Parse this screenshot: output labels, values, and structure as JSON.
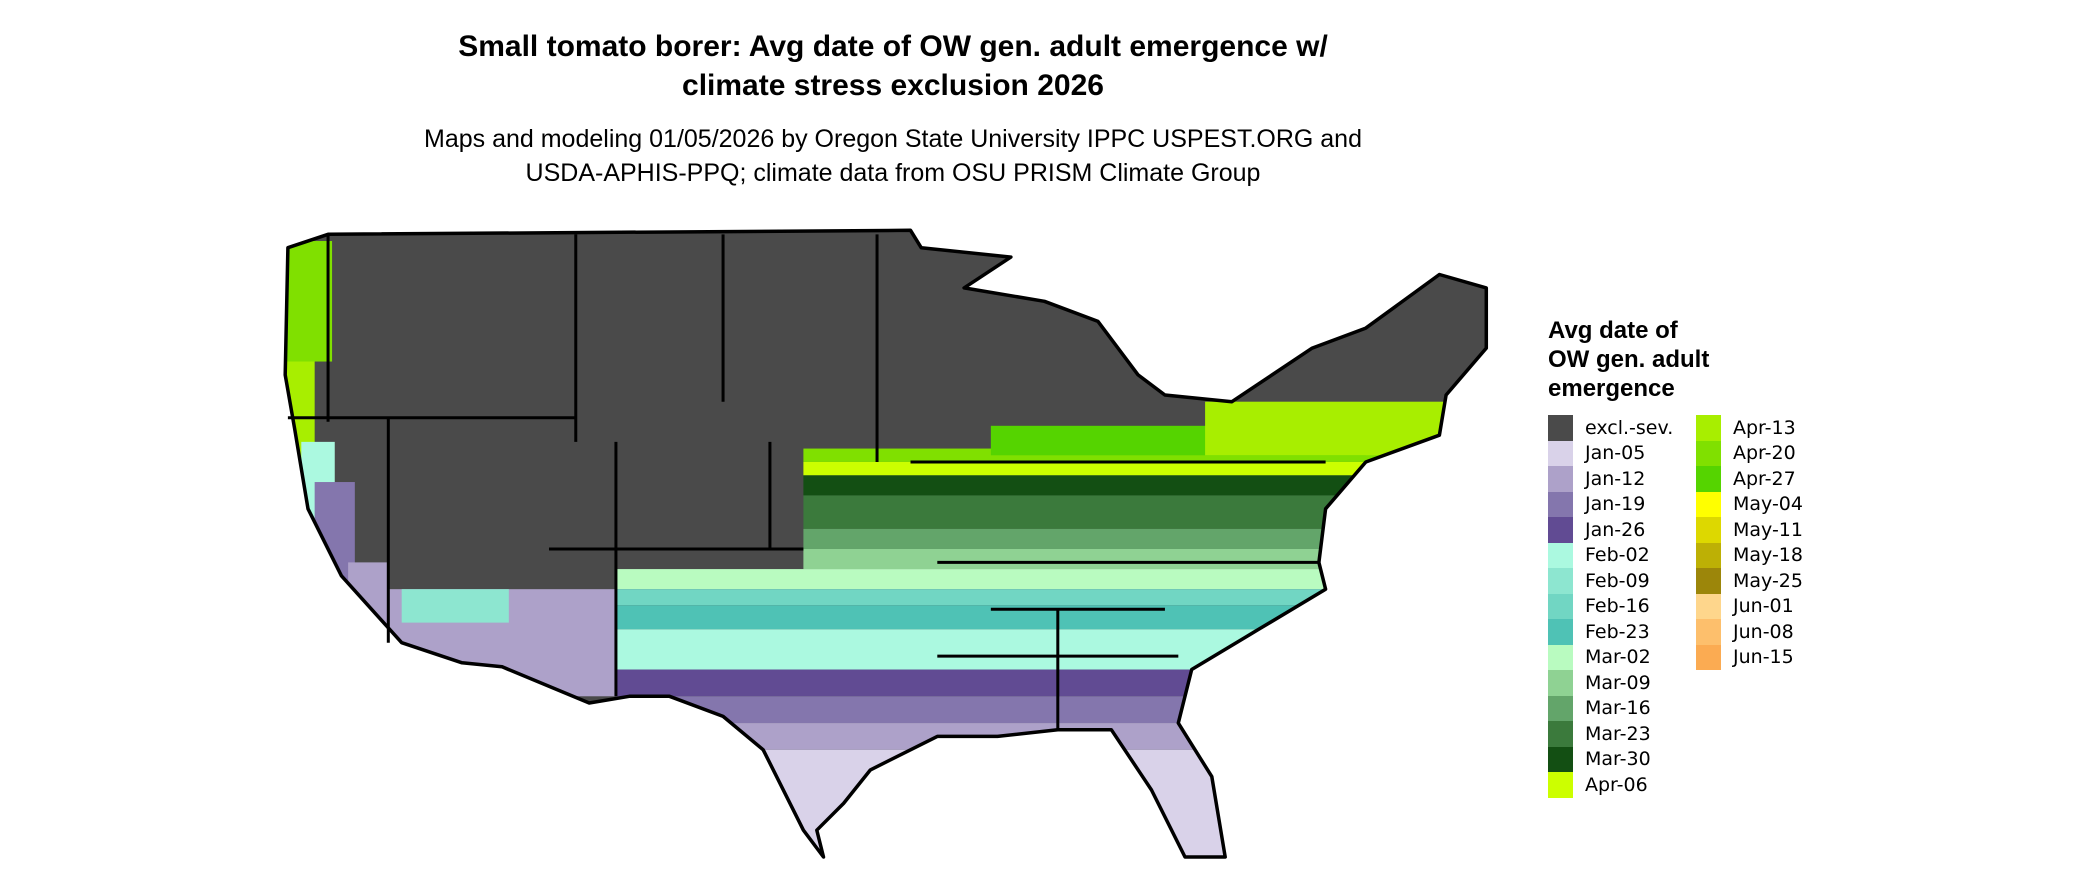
{
  "title": "Small tomato borer: Avg date of OW gen. adult emergence w/ climate stress exclusion 2026",
  "title_line1": "Small tomato borer: Avg date of OW gen. adult emergence w/",
  "title_line2": "climate stress exclusion 2026",
  "subtitle_line1": "Maps and modeling 01/05/2026 by Oregon State University IPPC USPEST.ORG and",
  "subtitle_line2": "USDA-APHIS-PPQ; climate data from OSU PRISM Climate Group",
  "legend": {
    "title": "Avg date of OW gen. adult emergence",
    "title_lines": [
      "Avg date of",
      "OW gen. adult",
      "emergence"
    ],
    "items": [
      {
        "label": "excl.-sev.",
        "color": "#4a4a4a"
      },
      {
        "label": "Jan-05",
        "color": "#d9d2e9"
      },
      {
        "label": "Jan-12",
        "color": "#ada1c9"
      },
      {
        "label": "Jan-19",
        "color": "#8476ad"
      },
      {
        "label": "Jan-26",
        "color": "#614b93"
      },
      {
        "label": "Feb-02",
        "color": "#abf9e0"
      },
      {
        "label": "Feb-09",
        "color": "#8de6d0"
      },
      {
        "label": "Feb-16",
        "color": "#71d6c3"
      },
      {
        "label": "Feb-23",
        "color": "#4fc2b5"
      },
      {
        "label": "Mar-02",
        "color": "#b9fbc0"
      },
      {
        "label": "Mar-09",
        "color": "#8fd293"
      },
      {
        "label": "Mar-16",
        "color": "#63a56a"
      },
      {
        "label": "Mar-23",
        "color": "#3b7a3c"
      },
      {
        "label": "Mar-30",
        "color": "#134f13"
      },
      {
        "label": "Apr-06",
        "color": "#ccff00"
      },
      {
        "label": "Apr-13",
        "color": "#a8ee00"
      },
      {
        "label": "Apr-20",
        "color": "#80e000"
      },
      {
        "label": "Apr-27",
        "color": "#55d400"
      },
      {
        "label": "May-04",
        "color": "#ffff00"
      },
      {
        "label": "May-11",
        "color": "#ddd800"
      },
      {
        "label": "May-18",
        "color": "#bdb005"
      },
      {
        "label": "May-25",
        "color": "#9c860a"
      },
      {
        "label": "Jun-01",
        "color": "#fed68c"
      },
      {
        "label": "Jun-08",
        "color": "#fdbf6c"
      },
      {
        "label": "Jun-15",
        "color": "#fbab52"
      }
    ]
  }
}
